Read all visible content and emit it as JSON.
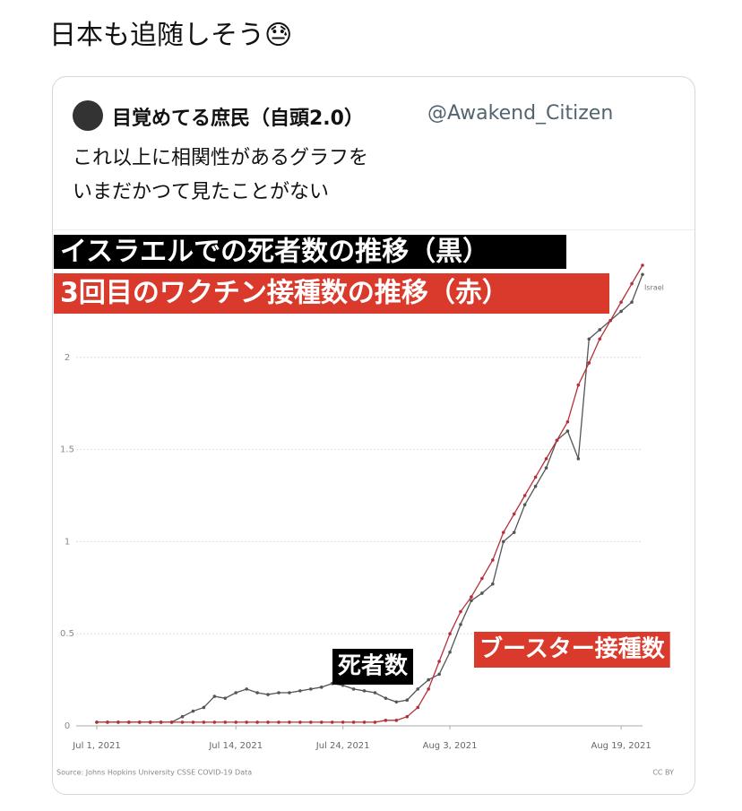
{
  "tweet": {
    "text": "日本も追随しそう😓",
    "quote": {
      "name": "目覚めてる庶民（自頭2.0）",
      "handle": "@Awakend_Citizen",
      "lines": [
        "これ以上に相関性があるグラフを",
        "いまだかつて見たことがない"
      ]
    }
  },
  "chart_data": {
    "type": "line",
    "title": "イスラエルでの死者数の推移（黒）",
    "subtitle": "3回目のワクチン接種数の推移（赤）",
    "end_label": "Israel",
    "source": "Source: Johns Hopkins University CSSE COVID-19 Data",
    "license": "CC BY",
    "x": [
      "2021-07-01",
      "2021-07-02",
      "2021-07-03",
      "2021-07-04",
      "2021-07-05",
      "2021-07-06",
      "2021-07-07",
      "2021-07-08",
      "2021-07-09",
      "2021-07-10",
      "2021-07-11",
      "2021-07-12",
      "2021-07-13",
      "2021-07-14",
      "2021-07-15",
      "2021-07-16",
      "2021-07-17",
      "2021-07-18",
      "2021-07-19",
      "2021-07-20",
      "2021-07-21",
      "2021-07-22",
      "2021-07-23",
      "2021-07-24",
      "2021-07-25",
      "2021-07-26",
      "2021-07-27",
      "2021-07-28",
      "2021-07-29",
      "2021-07-30",
      "2021-07-31",
      "2021-08-01",
      "2021-08-02",
      "2021-08-03",
      "2021-08-04",
      "2021-08-05",
      "2021-08-06",
      "2021-08-07",
      "2021-08-08",
      "2021-08-09",
      "2021-08-10",
      "2021-08-11",
      "2021-08-12",
      "2021-08-13",
      "2021-08-14",
      "2021-08-15",
      "2021-08-16",
      "2021-08-17",
      "2021-08-18",
      "2021-08-19",
      "2021-08-20",
      "2021-08-21"
    ],
    "series": [
      {
        "name": "死者数",
        "color": "#555555",
        "label_bg": "#000000",
        "values": [
          0.02,
          0.02,
          0.02,
          0.02,
          0.02,
          0.02,
          0.02,
          0.02,
          0.05,
          0.08,
          0.1,
          0.16,
          0.15,
          0.18,
          0.2,
          0.18,
          0.17,
          0.18,
          0.18,
          0.19,
          0.2,
          0.21,
          0.23,
          0.22,
          0.2,
          0.19,
          0.18,
          0.15,
          0.13,
          0.14,
          0.2,
          0.25,
          0.28,
          0.4,
          0.55,
          0.68,
          0.72,
          0.77,
          1.0,
          1.05,
          1.2,
          1.3,
          1.4,
          1.55,
          1.6,
          1.45,
          2.1,
          2.15,
          2.2,
          2.25,
          2.3,
          2.45
        ]
      },
      {
        "name": "ブースター接種数",
        "color": "#b5303a",
        "label_bg": "#d93a2b",
        "values": [
          0.02,
          0.02,
          0.02,
          0.02,
          0.02,
          0.02,
          0.02,
          0.02,
          0.02,
          0.02,
          0.02,
          0.02,
          0.02,
          0.02,
          0.02,
          0.02,
          0.02,
          0.02,
          0.02,
          0.02,
          0.02,
          0.02,
          0.02,
          0.02,
          0.02,
          0.02,
          0.02,
          0.03,
          0.03,
          0.05,
          0.1,
          0.2,
          0.35,
          0.5,
          0.62,
          0.7,
          0.8,
          0.9,
          1.05,
          1.15,
          1.25,
          1.35,
          1.45,
          1.55,
          1.65,
          1.85,
          1.97,
          2.1,
          2.2,
          2.3,
          2.4,
          2.5
        ]
      }
    ],
    "xlim": [
      "2021-07-01",
      "2021-08-21"
    ],
    "xticks": [
      {
        "value": "2021-07-01",
        "label": "Jul 1, 2021"
      },
      {
        "value": "2021-07-14",
        "label": "Jul 14, 2021"
      },
      {
        "value": "2021-07-24",
        "label": "Jul 24, 2021"
      },
      {
        "value": "2021-08-03",
        "label": "Aug 3, 2021"
      },
      {
        "value": "2021-08-19",
        "label": "Aug 19, 2021"
      }
    ],
    "ylim": [
      0,
      2.5
    ],
    "yticks": [
      0,
      0.5,
      1,
      1.5,
      2
    ],
    "grid": true
  }
}
